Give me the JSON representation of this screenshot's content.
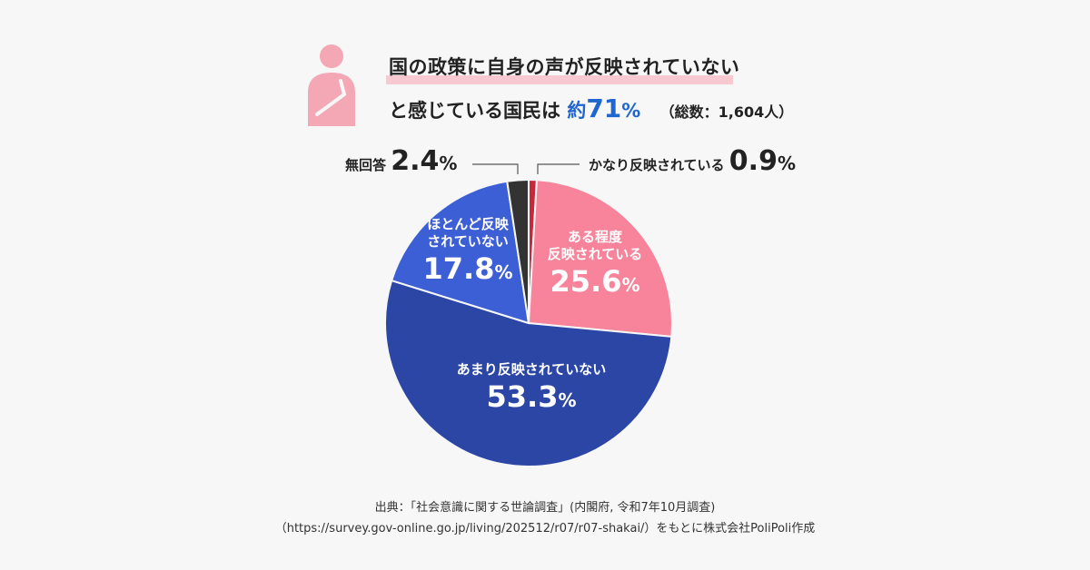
{
  "header": {
    "line1": "国の政策に自身の声が反映されていない",
    "line2_prefix": "と感じている国民は",
    "about": "約",
    "headline_value": "71",
    "headline_unit": "%",
    "total": "（総数：1,604人）"
  },
  "chart_data": {
    "type": "pie",
    "start": "top",
    "direction": "clockwise",
    "slices": [
      {
        "label": "かなり反映されている",
        "value": 0.9,
        "color": "#c8283c"
      },
      {
        "label": "ある程度反映されている",
        "value": 25.6,
        "color": "#f7849a"
      },
      {
        "label": "あまり反映されていない",
        "value": 53.3,
        "color": "#2c46a6"
      },
      {
        "label": "ほとんど反映されていない",
        "value": 17.8,
        "color": "#3d5fd6"
      },
      {
        "label": "無回答",
        "value": 2.4,
        "color": "#333333"
      }
    ],
    "labels": {
      "s0": {
        "text": "かなり反映されている",
        "num": "0.9",
        "unit": "%"
      },
      "s1": {
        "line1": "ある程度",
        "line2": "反映されている",
        "num": "25.6",
        "unit": "%"
      },
      "s2": {
        "line1": "あまり反映されていない",
        "num": "53.3",
        "unit": "%"
      },
      "s3": {
        "line1": "ほとんど反映",
        "line2": "されていない",
        "num": "17.8",
        "unit": "%"
      },
      "s4": {
        "text": "無回答",
        "num": "2.4",
        "unit": "%"
      }
    }
  },
  "footer": {
    "line1": "出典：「社会意識に関する世論調査」(内閣府, 令和7年10月調査)",
    "line2": "（https://survey.gov-online.go.jp/living/202512/r07/r07-shakai/）をもとに株式会社PoliPoli作成"
  },
  "icon": {
    "name": "thinking-person-icon",
    "color": "#f4a7b4"
  }
}
